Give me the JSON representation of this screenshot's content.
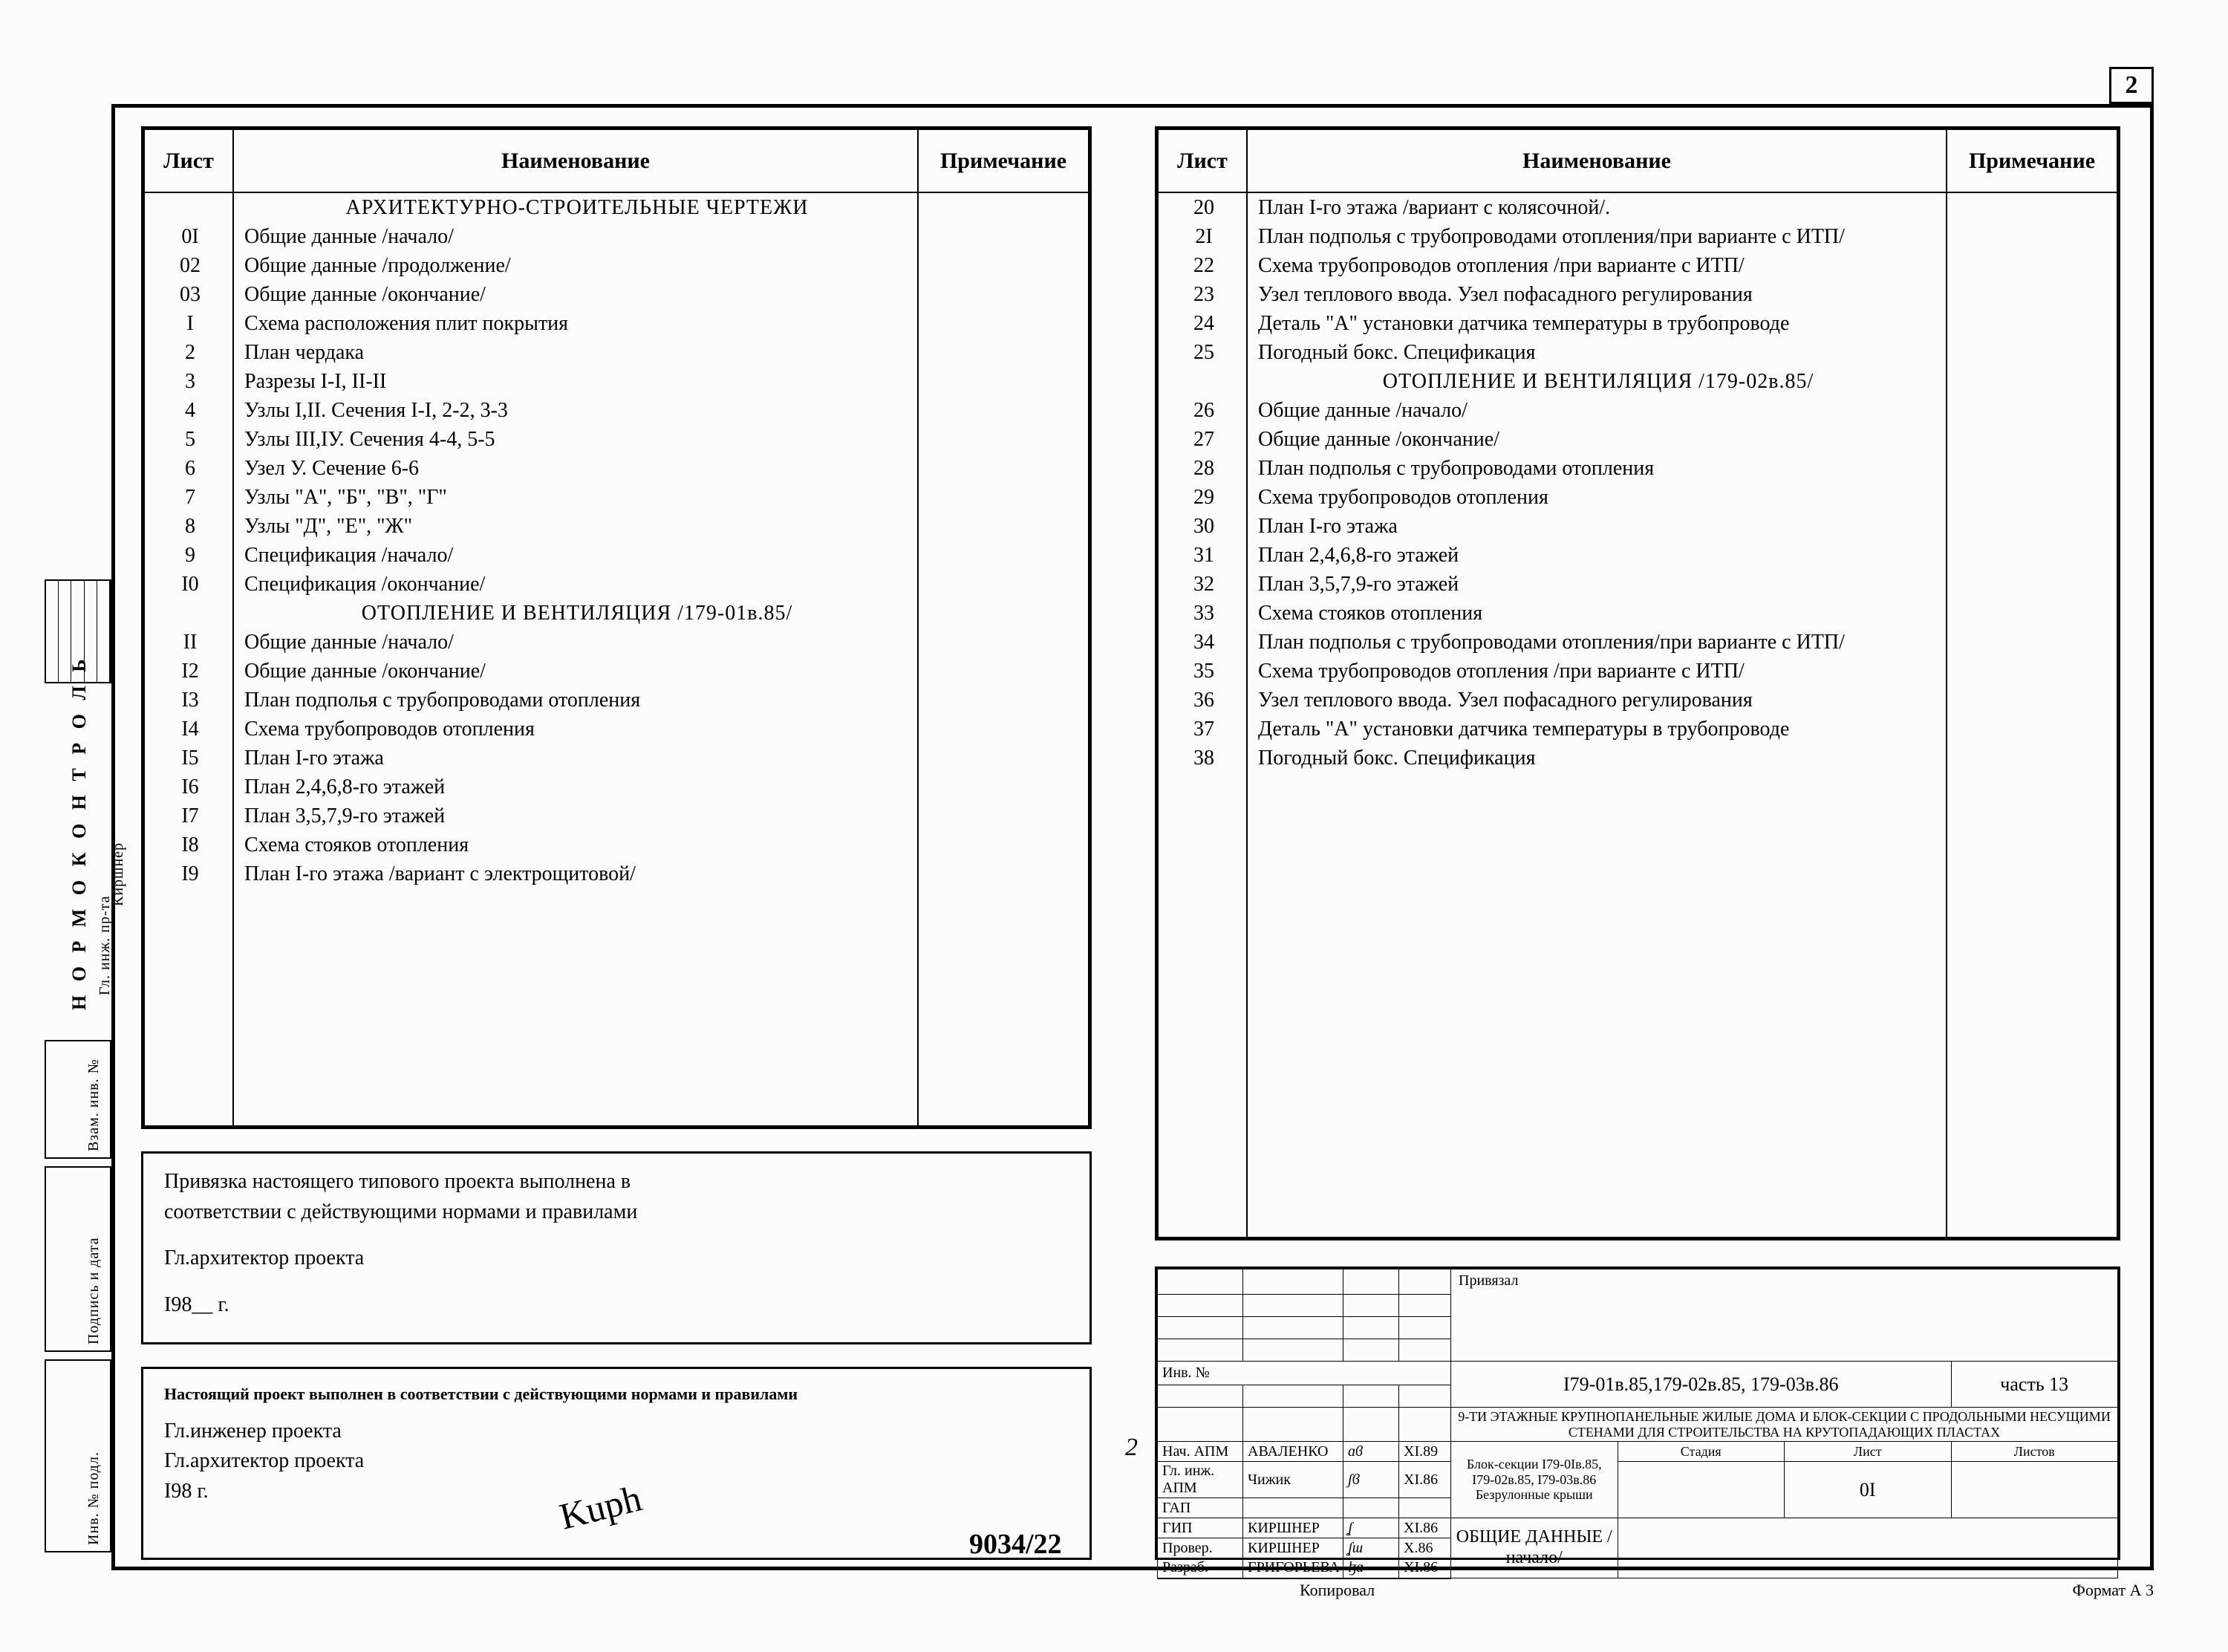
{
  "page_corner": "2",
  "headers": {
    "list": "Лист",
    "name": "Наименование",
    "note": "Примечание"
  },
  "left_rows": [
    {
      "n": "",
      "t": "АРХИТЕКТУРНО-СТРОИТЕЛЬНЫЕ ЧЕРТЕЖИ",
      "section": true
    },
    {
      "n": "0I",
      "t": "Общие данные /начало/"
    },
    {
      "n": "02",
      "t": "Общие данные /продолжение/"
    },
    {
      "n": "03",
      "t": "Общие данные /окончание/"
    },
    {
      "n": "I",
      "t": "Схема расположения плит покрытия"
    },
    {
      "n": "2",
      "t": "План чердака"
    },
    {
      "n": "3",
      "t": "Разрезы I-I, II-II"
    },
    {
      "n": "4",
      "t": "Узлы I,II. Сечения I-I, 2-2, 3-3"
    },
    {
      "n": "5",
      "t": "Узлы III,IУ. Сечения 4-4, 5-5"
    },
    {
      "n": "6",
      "t": "Узел У. Сечение 6-6"
    },
    {
      "n": "7",
      "t": "Узлы \"А\", \"Б\", \"В\", \"Г\""
    },
    {
      "n": "8",
      "t": "Узлы \"Д\", \"Е\", \"Ж\""
    },
    {
      "n": "9",
      "t": "Спецификация /начало/"
    },
    {
      "n": "I0",
      "t": "Спецификация /окончание/"
    },
    {
      "n": "",
      "t": "ОТОПЛЕНИЕ И ВЕНТИЛЯЦИЯ /179-01в.85/",
      "section": true
    },
    {
      "n": "II",
      "t": "Общие данные /начало/"
    },
    {
      "n": "I2",
      "t": "Общие данные /окончание/"
    },
    {
      "n": "I3",
      "t": "План подполья с трубопроводами отопления"
    },
    {
      "n": "I4",
      "t": "Схема трубопроводов отопления"
    },
    {
      "n": "I5",
      "t": "План I-го этажа"
    },
    {
      "n": "I6",
      "t": "План 2,4,6,8-го этажей"
    },
    {
      "n": "I7",
      "t": "План 3,5,7,9-го этажей"
    },
    {
      "n": "I8",
      "t": "Схема стояков отопления"
    },
    {
      "n": "I9",
      "t": "План I-го этажа /вариант с электрощитовой/"
    }
  ],
  "right_rows": [
    {
      "n": "20",
      "t": "План I-го этажа /вариант с колясочной/."
    },
    {
      "n": "2I",
      "t": "План подполья с трубопроводами отопления/при варианте с ИТП/"
    },
    {
      "n": "22",
      "t": "Схема трубопроводов отопления /при варианте с ИТП/"
    },
    {
      "n": "23",
      "t": "Узел теплового ввода. Узел пофасадного регулирова­ния"
    },
    {
      "n": "24",
      "t": "Деталь \"А\" установки датчика температуры в трубо­проводе"
    },
    {
      "n": "25",
      "t": "Погодный бокс. Спецификация"
    },
    {
      "n": "",
      "t": "ОТОПЛЕНИЕ И ВЕНТИЛЯЦИЯ /179-02в.85/",
      "section": true
    },
    {
      "n": "26",
      "t": "Общие данные /начало/"
    },
    {
      "n": "27",
      "t": "Общие данные /окончание/"
    },
    {
      "n": "28",
      "t": "План подполья с трубопроводами отопления"
    },
    {
      "n": "29",
      "t": "Схема трубопроводов отопления"
    },
    {
      "n": "30",
      "t": "План I-го этажа"
    },
    {
      "n": "31",
      "t": "План 2,4,6,8-го этажей"
    },
    {
      "n": "32",
      "t": "План 3,5,7,9-го этажей"
    },
    {
      "n": "33",
      "t": "Схема стояков отопления"
    },
    {
      "n": "34",
      "t": "План подполья с трубопроводами отопления/при варианте с ИТП/"
    },
    {
      "n": "35",
      "t": "Схема трубопроводов отопления /при варианте с ИТП/"
    },
    {
      "n": "36",
      "t": "Узел теплового ввода. Узел пофасадного регулирова­ния"
    },
    {
      "n": "37",
      "t": "Деталь \"А\" установки датчика температуры в трубо­проводе"
    },
    {
      "n": "38",
      "t": "Погодный бокс. Спецификация"
    }
  ],
  "note_a": {
    "l1": "Привязка настоящего типового проекта выполнена в",
    "l2": "соответствии с действующими нормами и правилами",
    "l3": "Гл.архитектор проекта",
    "l4": "I98__ г."
  },
  "note_b": {
    "l1": "Настоящий проект выполнен в соответствии с действующими нормами и правилами",
    "l2": "Гл.инженер проекта",
    "l3": "Гл.архитектор проекта",
    "l4": "I98    г."
  },
  "doc_number": "9034/22",
  "floating2": "2",
  "stamp": {
    "priv": "Привязал",
    "inv": "Инв. №",
    "code": "I79-01в.85,179-02в.85, 179-03в.86",
    "part": "часть 13",
    "title2": "9-ТИ ЭТАЖНЫЕ КРУПНОПАНЕЛЬНЫЕ ЖИЛЫЕ ДОМА И БЛОК-СЕКЦИИ С ПРОДОЛЬНЫМИ НЕСУЩИМИ СТЕНАМИ ДЛЯ СТРОИТЕЛЬСТВА НА КРУТОПАДАЮЩИХ ПЛАСТАХ",
    "obj": "Блок-секции I79-0Iв.85, I79-02в.85, I79-03в.86 Безрулонные крыши",
    "doc": "ОБЩИЕ ДАННЫЕ /начало/",
    "cols": {
      "stage": "Стадия",
      "sheet": "Лист",
      "sheets": "Листов"
    },
    "sheet_no": "0I",
    "roles": [
      {
        "r": "Нач. АПМ",
        "n": "АВАЛЕНКО",
        "d": "XI.89"
      },
      {
        "r": "Гл. инж. АПМ",
        "n": "Чижик",
        "d": "XI.86"
      },
      {
        "r": "ГАП",
        "n": "",
        "d": ""
      },
      {
        "r": "ГИП",
        "n": "КИРШНЕР",
        "d": "XI.86"
      },
      {
        "r": "Провер.",
        "n": "КИРШНЕР",
        "d": "X.86"
      },
      {
        "r": "Разраб.",
        "n": "ГРИГОРЬЕВА",
        "d": "XI.86"
      }
    ]
  },
  "binding": {
    "normok": "Н О Р М О К О Н Т Р О Л Ь",
    "labels": [
      "Гл. инж. пр-та",
      "Киршнер",
      "Взам. инв. №",
      "Подпись и дата",
      "Инв. № подл."
    ]
  },
  "footer": {
    "left": "Копировал",
    "right": "Формат  А 3"
  }
}
